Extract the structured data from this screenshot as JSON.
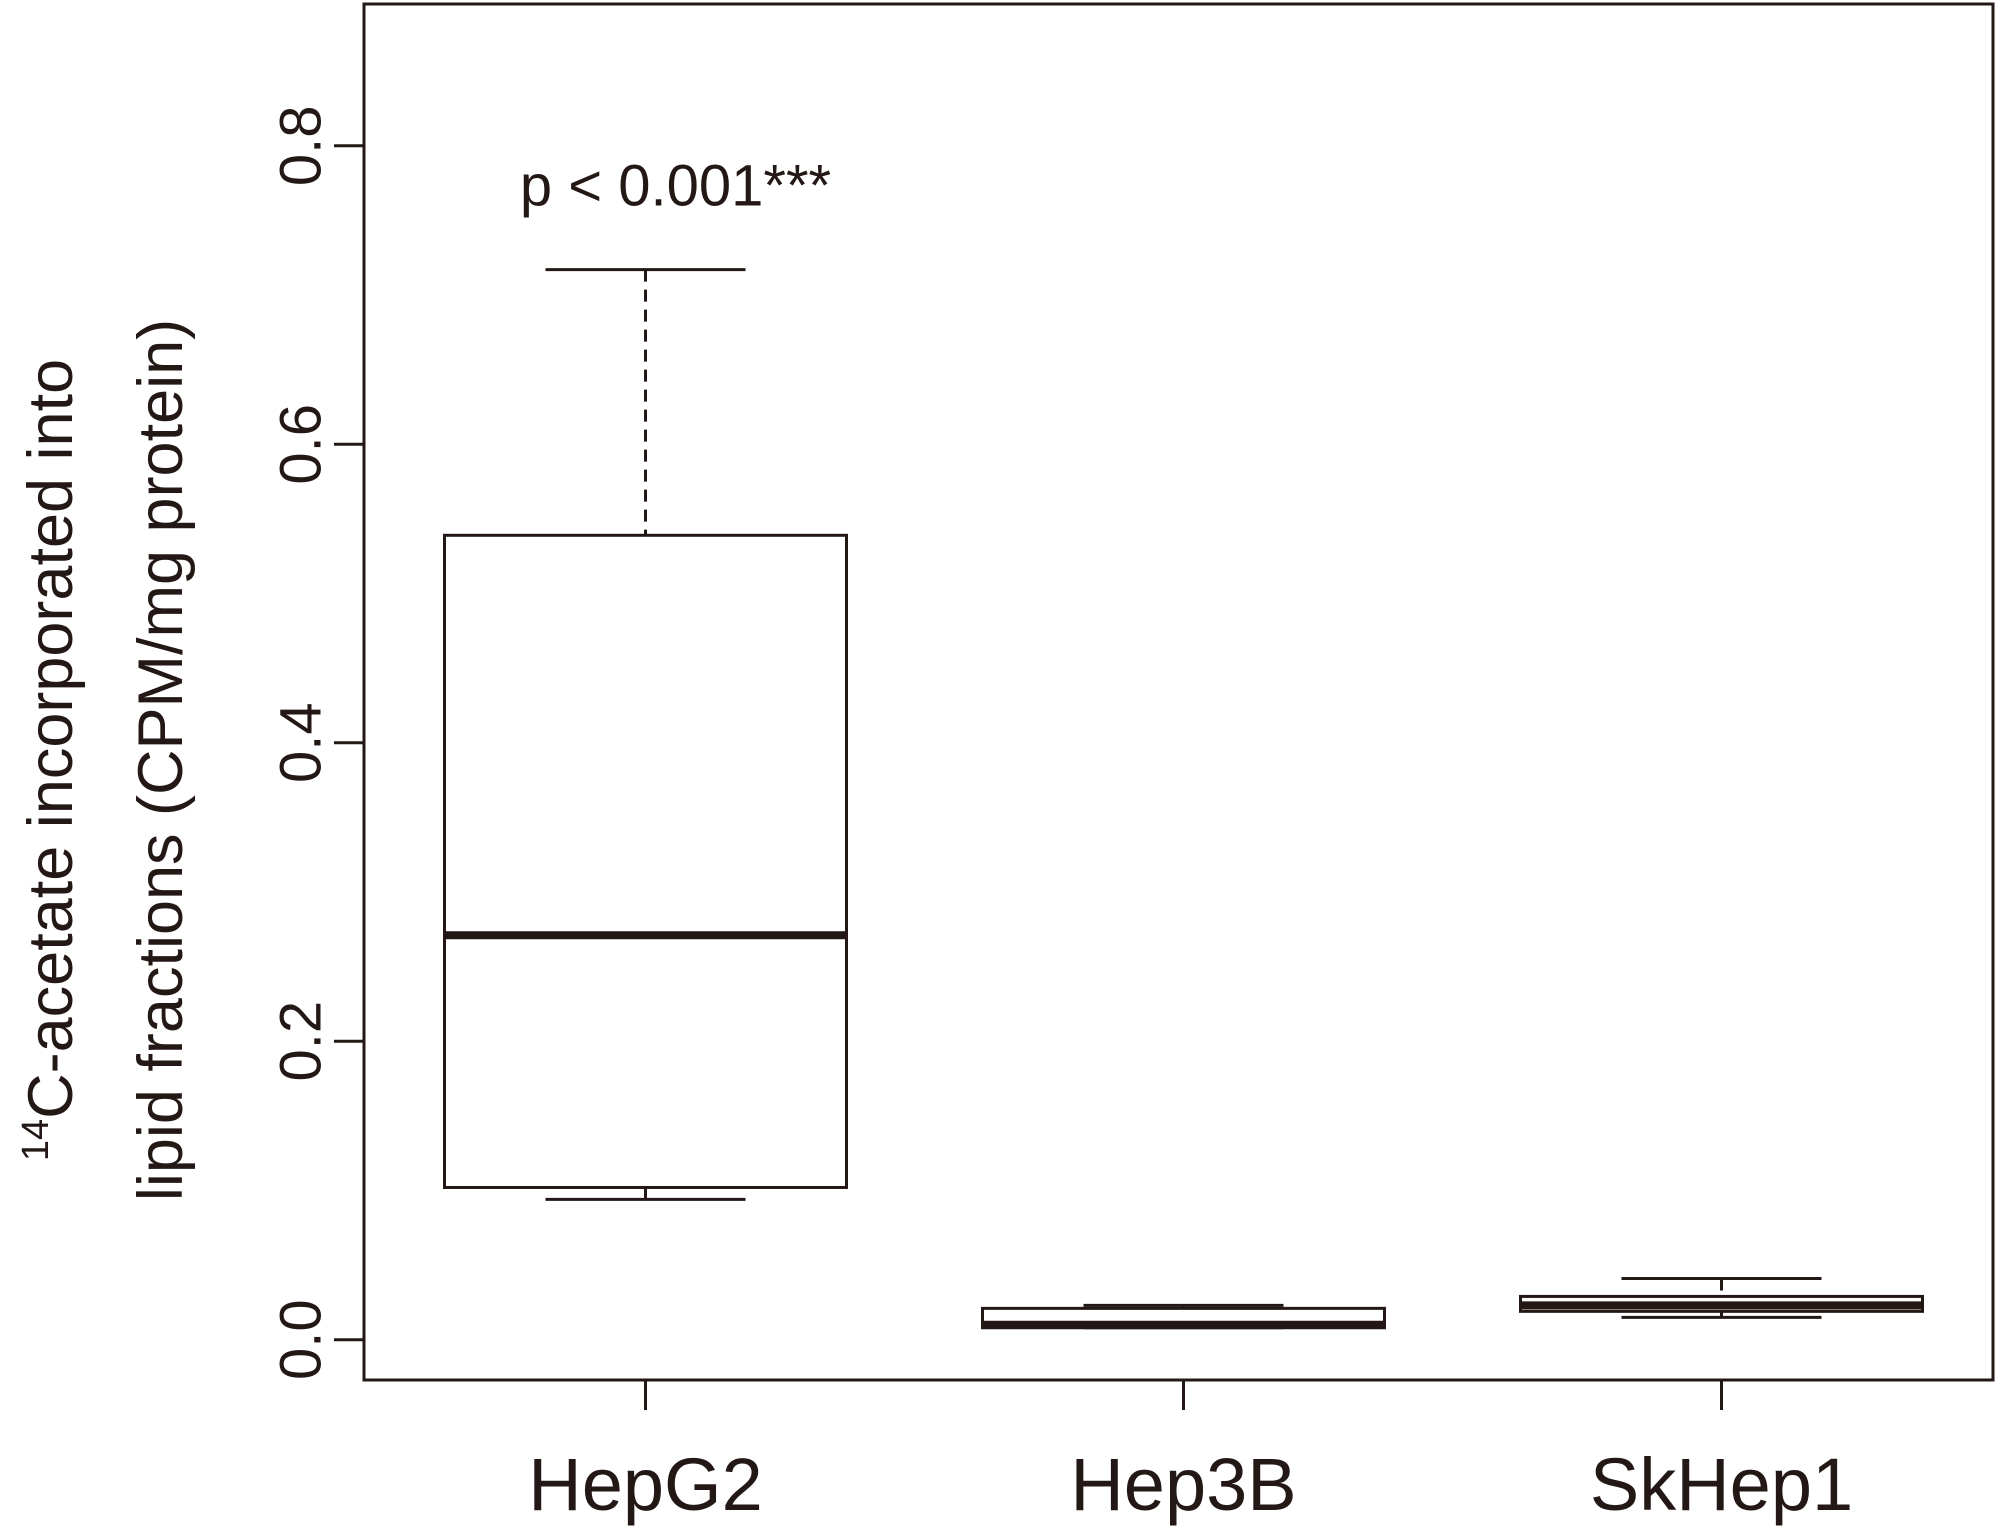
{
  "chart_data": {
    "type": "boxplot",
    "categories": [
      "HepG2",
      "Hep3B",
      "SkHep1"
    ],
    "boxes": [
      {
        "category": "HepG2",
        "min": 0.094,
        "q1": 0.102,
        "median": 0.271,
        "q3": 0.539,
        "max": 0.717
      },
      {
        "category": "Hep3B",
        "min": 0.008,
        "q1": 0.008,
        "median": 0.01,
        "q3": 0.021,
        "max": 0.023
      },
      {
        "category": "SkHep1",
        "min": 0.015,
        "q1": 0.019,
        "median": 0.023,
        "q3": 0.029,
        "max": 0.041
      }
    ],
    "ylabel_line1_sup": "14",
    "ylabel_line1": "C-acetate incorporated into",
    "ylabel_line2": "lipid fractions (CPM/mg protein)",
    "yticks": [
      "0.0",
      "0.2",
      "0.4",
      "0.6",
      "0.8"
    ],
    "ylim": [
      -0.027,
      0.895
    ],
    "annotation": "p < 0.001***",
    "grid": false,
    "legend": "none",
    "line_color": "#231815"
  }
}
